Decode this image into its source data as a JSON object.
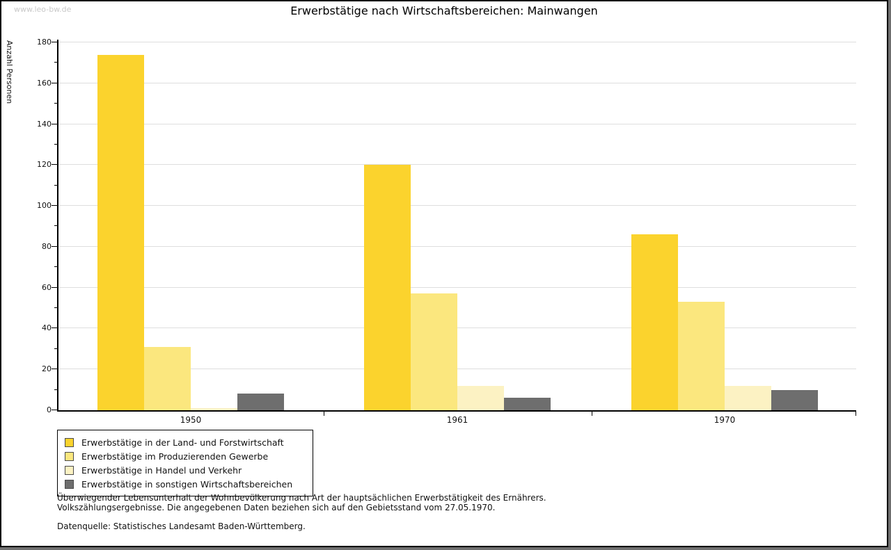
{
  "window": {
    "watermark": "www.leo-bw.de"
  },
  "header": {
    "title": "Erwerbstätige nach Wirtschaftsbereichen: Mainwangen"
  },
  "chart_data": {
    "type": "bar",
    "title": "Erwerbstätige nach Wirtschaftsbereichen: Mainwangen",
    "xlabel": "",
    "ylabel": "Anzahl Personen",
    "categories": [
      "1950",
      "1961",
      "1970"
    ],
    "series": [
      {
        "name": "Erwerbstätige in der Land- und Forstwirtschaft",
        "color": "#FBD32D",
        "values": [
          174,
          120,
          86
        ]
      },
      {
        "name": "Erwerbstätige im Produzierenden Gewerbe",
        "color": "#FBE77E",
        "values": [
          31,
          57,
          53
        ]
      },
      {
        "name": "Erwerbstätige in Handel und Verkehr",
        "color": "#FCF2C3",
        "values": [
          1,
          12,
          12
        ]
      },
      {
        "name": "Erwerbstätige in sonstigen Wirtschaftsbereichen",
        "color": "#6E6E6E",
        "values": [
          8,
          6,
          10
        ]
      }
    ],
    "ylim": [
      0,
      180
    ],
    "ytick_step": 20,
    "ytick_minor_step": 10,
    "grid": true,
    "legend_position": "bottom-left",
    "axis_color": "#000000",
    "grid_color": "#dedede"
  },
  "footer": {
    "note_line1": "Überwiegender Lebensunterhalt der Wohnbevölkerung nach Art der hauptsächlichen Erwerbstätigkeit des Ernährers.",
    "note_line2": "Volkszählungsergebnisse. Die angegebenen Daten beziehen sich auf den Gebietsstand vom 27.05.1970.",
    "source": "Datenquelle: Statistisches Landesamt Baden-Württemberg."
  }
}
